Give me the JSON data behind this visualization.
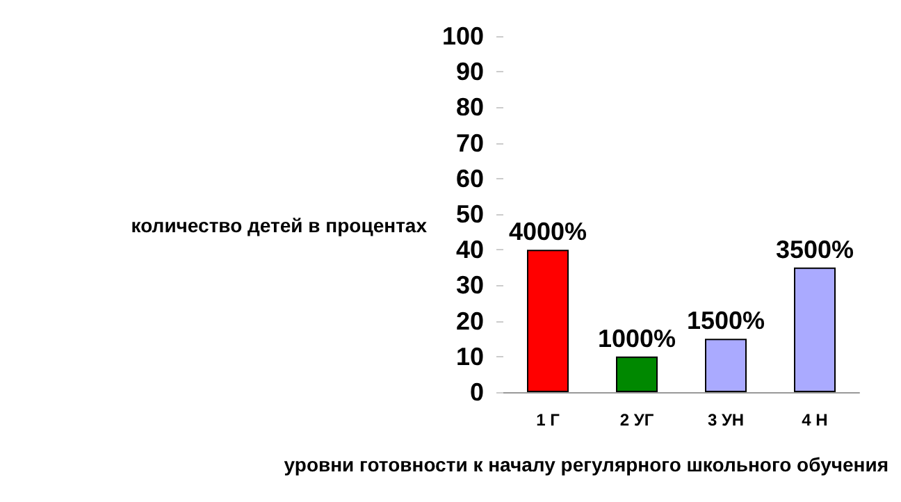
{
  "chart_data": {
    "type": "bar",
    "xlabel": "уровни готовности к началу регулярного школьного обучения",
    "ylabel": "количество детей в процентах",
    "categories": [
      "1 Г",
      "2 УГ",
      "3 УН",
      "4 Н"
    ],
    "values": [
      40,
      10,
      15,
      35
    ],
    "colors": [
      "#ff0000",
      "#008800",
      "#aaaaff",
      "#aaaaff"
    ],
    "value_labels": [
      "4000%",
      "1000%",
      "1500%",
      "3500%"
    ],
    "ylim": [
      0,
      100
    ],
    "yticks": [
      0,
      10,
      20,
      30,
      40,
      50,
      60,
      70,
      80,
      90,
      100
    ],
    "grid": false
  }
}
